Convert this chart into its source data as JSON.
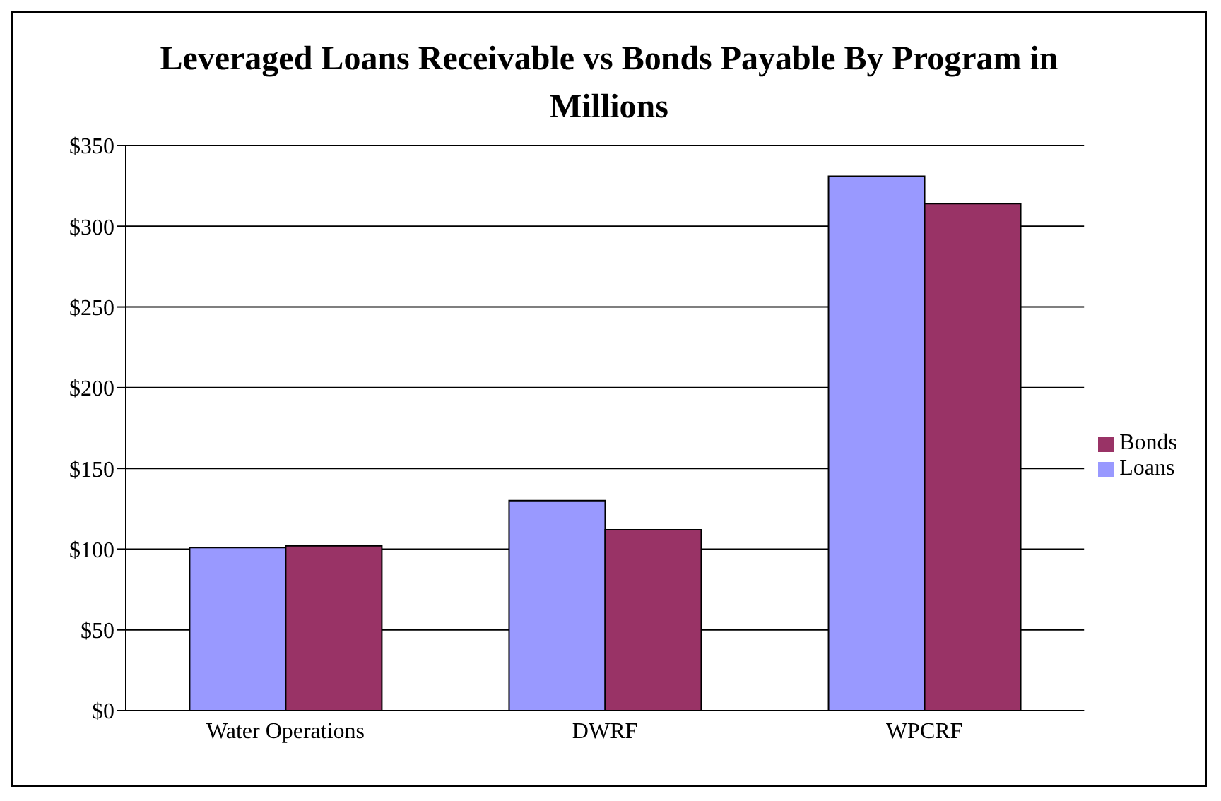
{
  "chart_data": {
    "type": "bar",
    "title": "Leveraged Loans Receivable vs Bonds Payable By Program in Millions",
    "categories": [
      "Water Operations",
      "DWRF",
      "WPCRF"
    ],
    "series": [
      {
        "name": "Loans",
        "color": "#9999ff",
        "values": [
          101,
          130,
          331
        ]
      },
      {
        "name": "Bonds",
        "color": "#993366",
        "values": [
          102,
          112,
          314
        ]
      }
    ],
    "ylim": [
      0,
      350
    ],
    "yticks": [
      {
        "value": 0,
        "label": "$0"
      },
      {
        "value": 50,
        "label": "$50"
      },
      {
        "value": 100,
        "label": "$100"
      },
      {
        "value": 150,
        "label": "$150"
      },
      {
        "value": 200,
        "label": "$200"
      },
      {
        "value": 250,
        "label": "$250"
      },
      {
        "value": 300,
        "label": "$300"
      },
      {
        "value": 350,
        "label": "$350"
      }
    ],
    "grid": "y",
    "legend": "right"
  }
}
